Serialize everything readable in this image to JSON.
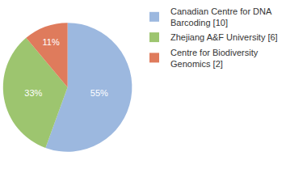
{
  "chart_data": {
    "type": "pie",
    "categories": [
      "Canadian Centre for DNA Barcoding [10]",
      "Zhejiang A&F University [6]",
      "Centre for Biodiversity Genomics [2]"
    ],
    "values": [
      55,
      33,
      11
    ],
    "value_labels": [
      "55%",
      "33%",
      "11%"
    ],
    "colors": [
      "#9cb8df",
      "#9dc56f",
      "#df7b5c"
    ],
    "data_labels": true,
    "legend": "top right"
  }
}
